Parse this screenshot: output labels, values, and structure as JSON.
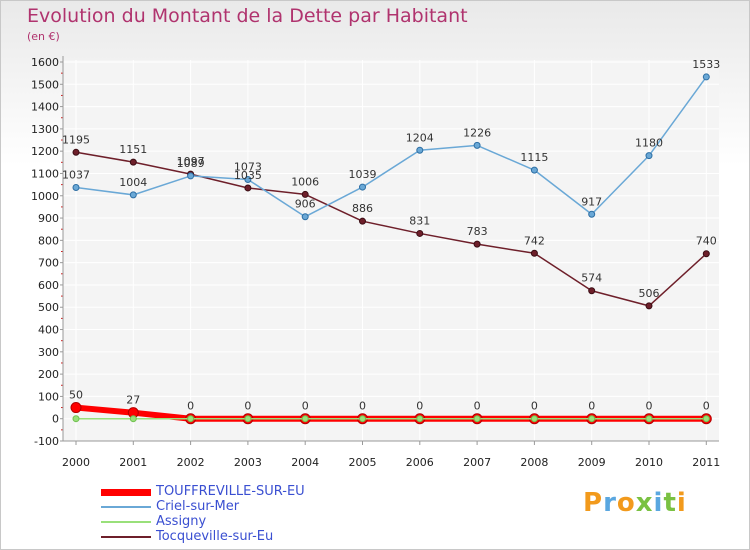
{
  "header": {
    "title": "Evolution du Montant de la Dette par Habitant",
    "subtitle": "(en €)"
  },
  "logo": {
    "text": "Proxiti"
  },
  "colors": {
    "touffreville": "#ff0000",
    "criel": "#6aa8d6",
    "assigny": "#99e07a",
    "tocqueville": "#6e1f2a",
    "axis": "#999999",
    "grid": "#ffffff"
  },
  "chart_data": {
    "type": "line",
    "title": "Evolution du Montant de la Dette par Habitant",
    "subtitle": "(en €)",
    "x": [
      "2000",
      "2001",
      "2002",
      "2003",
      "2004",
      "2005",
      "2006",
      "2007",
      "2008",
      "2009",
      "2010",
      "2011"
    ],
    "ylim": [
      -100,
      1600
    ],
    "yticks": [
      -100,
      0,
      100,
      200,
      300,
      400,
      500,
      600,
      700,
      800,
      900,
      1000,
      1100,
      1200,
      1300,
      1400,
      1500,
      1600
    ],
    "legend_position": "bottom-left",
    "grid": true,
    "series": [
      {
        "name": "TOUFFREVILLE-SUR-EU",
        "values": [
          50,
          27,
          0,
          0,
          0,
          0,
          0,
          0,
          0,
          0,
          0,
          0
        ],
        "color": "#ff0000",
        "labels": true
      },
      {
        "name": "Criel-sur-Mer",
        "values": [
          1037,
          1004,
          1089,
          1073,
          906,
          1039,
          1204,
          1226,
          1115,
          917,
          1180,
          1533
        ],
        "color": "#6aa8d6",
        "labels": true
      },
      {
        "name": "Assigny",
        "values": [
          0,
          0,
          0,
          0,
          0,
          0,
          0,
          0,
          0,
          0,
          0,
          0
        ],
        "color": "#99e07a",
        "labels": false
      },
      {
        "name": "Tocqueville-sur-Eu",
        "values": [
          1195,
          1151,
          1097,
          1035,
          1006,
          886,
          831,
          783,
          742,
          574,
          506,
          740
        ],
        "color": "#6e1f2a",
        "labels": true
      }
    ]
  }
}
